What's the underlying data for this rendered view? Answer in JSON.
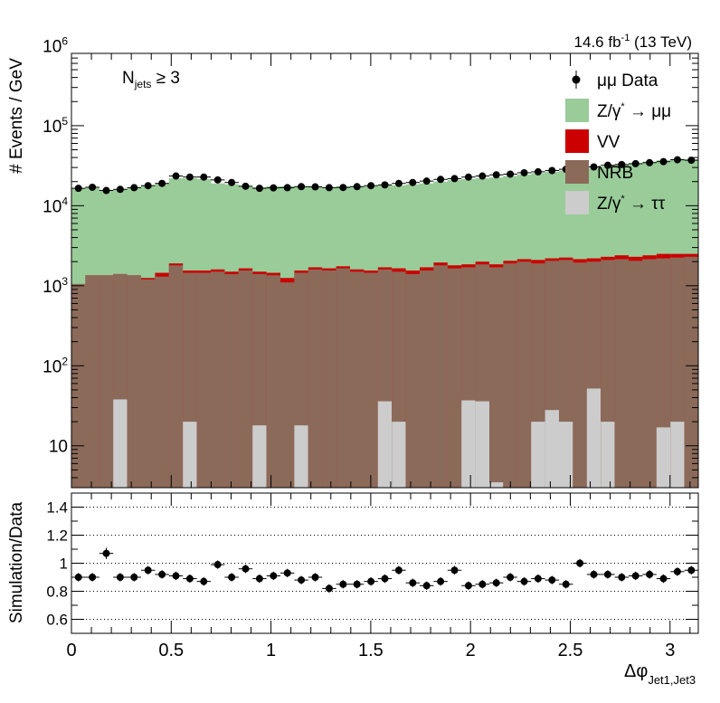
{
  "lumi_label": "14.6 fb",
  "lumi_sup": "-1",
  "lumi_energy": "(13 TeV)",
  "selection": {
    "main": "N",
    "sub": "jets",
    "rest": " ≥ 3"
  },
  "chart_data": {
    "type": "bar",
    "stacked": true,
    "x_range": [
      0,
      3.1416
    ],
    "bins": 45,
    "top": {
      "ylabel": "# Events / GeV",
      "ylog": true,
      "ylim": [
        3,
        800000
      ],
      "yticks": [
        {
          "base": "10",
          "exp": "",
          "v": 10
        },
        {
          "base": "10",
          "exp": "2",
          "v": 100
        },
        {
          "base": "10",
          "exp": "3",
          "v": 1000
        },
        {
          "base": "10",
          "exp": "4",
          "v": 10000
        },
        {
          "base": "10",
          "exp": "5",
          "v": 100000
        },
        {
          "base": "10",
          "exp": "6",
          "v": 1000000
        }
      ],
      "legend_position": "top-right",
      "legend": [
        {
          "key": "data",
          "label": "μμ Data",
          "sup": ""
        },
        {
          "key": "zmm",
          "label": "Z/γ",
          "sup": "*",
          "tail": " → μμ"
        },
        {
          "key": "vv",
          "label": "VV",
          "sup": ""
        },
        {
          "key": "nrb",
          "label": "NRB",
          "sup": ""
        },
        {
          "key": "ztt",
          "label": "Z/γ",
          "sup": "*",
          "tail": " → ττ"
        }
      ],
      "colors": {
        "zmm": "#99cc99",
        "vv": "#cc0000",
        "nrb": "#8b6a5a",
        "ztt": "#cccccc",
        "data": "#000000"
      },
      "series": {
        "nrb": [
          1050,
          1350,
          1350,
          1400,
          1350,
          1200,
          1300,
          1800,
          1450,
          1450,
          1500,
          1400,
          1550,
          1400,
          1350,
          1100,
          1450,
          1600,
          1550,
          1650,
          1500,
          1450,
          1600,
          1500,
          1400,
          1550,
          1800,
          1650,
          1700,
          1850,
          1700,
          1900,
          2000,
          1900,
          2050,
          2100,
          1950,
          2000,
          2100,
          2150,
          2050,
          2150,
          2200,
          2250,
          2300
        ],
        "vv": [
          1050,
          1350,
          1350,
          1400,
          1350,
          1250,
          1450,
          1900,
          1550,
          1550,
          1600,
          1500,
          1650,
          1500,
          1450,
          1250,
          1550,
          1700,
          1650,
          1750,
          1600,
          1550,
          1700,
          1650,
          1550,
          1700,
          1950,
          1800,
          1850,
          2000,
          1850,
          2050,
          2150,
          2100,
          2200,
          2250,
          2150,
          2200,
          2300,
          2400,
          2300,
          2400,
          2500,
          2500,
          2500
        ],
        "zmm": [
          16500,
          17000,
          15500,
          16000,
          17000,
          18000,
          19000,
          22000,
          22000,
          21500,
          19000,
          18500,
          17500,
          17000,
          17500,
          17500,
          17500,
          17000,
          17000,
          17500,
          17500,
          17500,
          18000,
          18000,
          18500,
          19000,
          20000,
          21000,
          21500,
          22000,
          22500,
          23500,
          24500,
          25500,
          26500,
          27500,
          28500,
          29500,
          31000,
          32500,
          34000,
          35500,
          37000,
          38500,
          38000
        ],
        "ztt": [
          0,
          0,
          0,
          38,
          0,
          0,
          0,
          0,
          20,
          0,
          0,
          0,
          0,
          18,
          0,
          0,
          18,
          0,
          0,
          0,
          0,
          0,
          36,
          20,
          0,
          0,
          0,
          0,
          37,
          36,
          3.5,
          0,
          0,
          20,
          28,
          20,
          0,
          52,
          20,
          0,
          0,
          0,
          17,
          20,
          0
        ]
      },
      "data": [
        16500,
        17000,
        15500,
        16000,
        16800,
        17800,
        19000,
        23500,
        22800,
        22800,
        21000,
        19500,
        17500,
        16500,
        16700,
        16800,
        17300,
        17200,
        16800,
        16900,
        17300,
        17800,
        18200,
        19000,
        19500,
        20300,
        21300,
        21800,
        22800,
        23500,
        24300,
        24800,
        25800,
        26500,
        27500,
        28500,
        29500,
        30500,
        32000,
        32700,
        33500,
        34500,
        35500,
        37500,
        37000
      ]
    },
    "ratio": {
      "ylabel": "Simulation/Data",
      "ylim": [
        0.5,
        1.5
      ],
      "yticks": [
        0.6,
        0.8,
        1,
        1.2,
        1.4
      ],
      "ytick_labels": [
        "0.6",
        "0.8",
        "1",
        "1.2",
        "1.4"
      ],
      "grid_y": [
        0.6,
        0.8,
        1.0,
        1.2,
        1.4
      ],
      "values": [
        0.9,
        0.9,
        1.07,
        0.9,
        0.9,
        0.95,
        0.92,
        0.91,
        0.89,
        0.87,
        0.99,
        0.9,
        0.96,
        0.89,
        0.91,
        0.93,
        0.88,
        0.9,
        0.82,
        0.85,
        0.85,
        0.87,
        0.89,
        0.95,
        0.86,
        0.84,
        0.87,
        0.95,
        0.84,
        0.85,
        0.86,
        0.9,
        0.87,
        0.89,
        0.88,
        0.85,
        1.0,
        0.92,
        0.92,
        0.9,
        0.91,
        0.92,
        0.89,
        0.94,
        0.95
      ],
      "errors": [
        0.03,
        0.03,
        0.04,
        0.03,
        0.03,
        0.03,
        0.03,
        0.03,
        0.03,
        0.03,
        0.03,
        0.03,
        0.03,
        0.03,
        0.03,
        0.03,
        0.03,
        0.03,
        0.03,
        0.03,
        0.03,
        0.03,
        0.03,
        0.03,
        0.03,
        0.03,
        0.03,
        0.03,
        0.03,
        0.03,
        0.03,
        0.03,
        0.03,
        0.03,
        0.03,
        0.03,
        0.03,
        0.03,
        0.03,
        0.03,
        0.03,
        0.03,
        0.03,
        0.03,
        0.03
      ]
    },
    "xticks": [
      0,
      0.5,
      1,
      1.5,
      2,
      2.5,
      3
    ],
    "xtick_labels": [
      "0",
      "0.5",
      "1",
      "1.5",
      "2",
      "2.5",
      "3"
    ],
    "xlabel": {
      "main": "Δφ",
      "sub": "Jet1,Jet3"
    }
  }
}
